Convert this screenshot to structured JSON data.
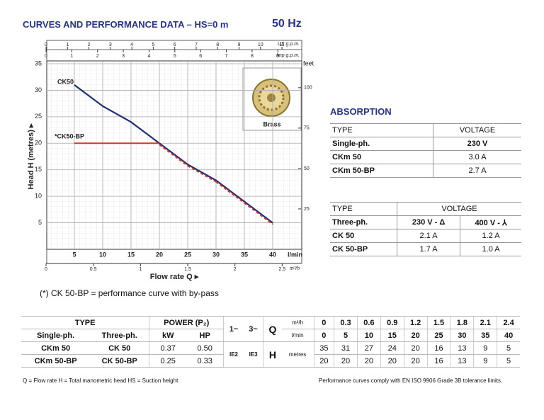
{
  "header": {
    "title": "CURVES AND PERFORMANCE DATA  –  HS=0 m",
    "frequency": "50 Hz"
  },
  "chart_data": {
    "type": "line",
    "y_label": "Head H (metres) ▸",
    "x_label": "Flow rate Q ▸",
    "x_unit": "l/min",
    "x": [
      5,
      10,
      15,
      20,
      25,
      30,
      35,
      40
    ],
    "series": [
      {
        "name": "CK50",
        "color": "#1f2f75",
        "values": [
          31,
          27,
          24,
          20,
          16,
          13,
          9,
          5
        ]
      },
      {
        "name": "*CK50-BP",
        "color": "#e0332a",
        "values": [
          20,
          20,
          20,
          20,
          16,
          13,
          9,
          5
        ]
      }
    ],
    "xlim": [
      0,
      45
    ],
    "ylim": [
      0,
      35
    ],
    "xticks": [
      5,
      10,
      15,
      20,
      25,
      30,
      35,
      40
    ],
    "yticks": [
      5,
      10,
      15,
      20,
      25,
      30,
      35
    ],
    "grid": true,
    "top_axis": {
      "label": "US g.p.m.",
      "lim": [
        0,
        11.89
      ],
      "ticks": [
        0,
        1,
        2,
        3,
        4,
        5,
        6,
        7,
        8,
        9,
        10,
        11
      ]
    },
    "top_axis_2": {
      "label": "Imp g.p.m.",
      "lim": [
        0,
        9.9
      ],
      "ticks": [
        0,
        1,
        2,
        3,
        4,
        5,
        6,
        7,
        8,
        9
      ]
    },
    "bottom_axis_2": {
      "label": "m³/h",
      "lim": [
        0,
        2.7
      ],
      "ticks": [
        0,
        0.5,
        1,
        1.5,
        2,
        2.5
      ]
    },
    "y2_label": "feet",
    "y2lim": [
      0,
      114.83
    ],
    "y2ticks": [
      25,
      50,
      75,
      100
    ],
    "inset_label": "Brass"
  },
  "note": "(*) CK 50-BP = performance curve with by-pass",
  "absorption": {
    "title": "ABSORPTION",
    "single": {
      "type": "TYPE",
      "voltage": "VOLTAGE",
      "phase": "Single-ph.",
      "v230": "230 V",
      "rows": [
        [
          "CKm 50",
          "3.0 A"
        ],
        [
          "CKm 50-BP",
          "2.7 A"
        ]
      ]
    },
    "three": {
      "type": "TYPE",
      "voltage": "VOLTAGE",
      "phase": "Three-ph.",
      "v230": "230 V - Δ",
      "v400": "400 V - ⅄",
      "rows": [
        [
          "CK 50",
          "2.1 A",
          "1.2 A"
        ],
        [
          "CK 50-BP",
          "1.7 A",
          "1.0 A"
        ]
      ]
    }
  },
  "perf_table": {
    "type_header": "TYPE",
    "power_header": "POWER (P₂)",
    "single": "Single-ph.",
    "three": "Three-ph.",
    "kw": "kW",
    "hp": "HP",
    "phase1": "1~",
    "phase3": "3~",
    "q": "Q",
    "h": "H",
    "m3h": "m³/h",
    "lmin": "l/min",
    "metres": "metres",
    "ie2": "IE2",
    "ie3": "IE3",
    "q_m3h": [
      "0",
      "0.3",
      "0.6",
      "0.9",
      "1.2",
      "1.5",
      "1.8",
      "2.1",
      "2.4"
    ],
    "q_lmin": [
      "0",
      "5",
      "10",
      "15",
      "20",
      "25",
      "30",
      "35",
      "40"
    ],
    "rows": [
      {
        "single": "CKm 50",
        "three": "CK 50",
        "kw": "0.37",
        "hp": "0.50",
        "h": [
          "35",
          "31",
          "27",
          "24",
          "20",
          "16",
          "13",
          "9",
          "5"
        ]
      },
      {
        "single": "CKm 50-BP",
        "three": "CK 50-BP",
        "kw": "0.25",
        "hp": "0.33",
        "h": [
          "20",
          "20",
          "20",
          "20",
          "20",
          "16",
          "13",
          "9",
          "5"
        ]
      }
    ]
  },
  "footer": {
    "legend": "Q = Flow rate   H = Total manometric head   HS = Suction height",
    "compliance": "Performance curves comply with EN ISO 9906 Grade 3B tolerance limits."
  }
}
